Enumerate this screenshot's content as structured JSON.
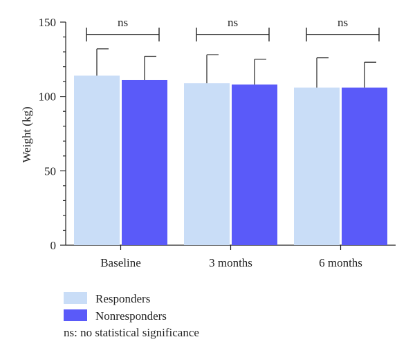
{
  "chart_data": {
    "type": "bar",
    "title": "",
    "xlabel": "",
    "ylabel": "Weight (kg)",
    "ylim": [
      0,
      150
    ],
    "yticks": [
      0,
      50,
      100,
      150
    ],
    "categories": [
      "Baseline",
      "3 months",
      "6 months"
    ],
    "series": [
      {
        "name": "Responders",
        "color": "#c9ddf7",
        "values": [
          114,
          109,
          106
        ],
        "errors": [
          18,
          19,
          20
        ]
      },
      {
        "name": "Nonresponders",
        "color": "#5a5af9",
        "values": [
          111,
          108,
          106
        ],
        "errors": [
          16,
          17,
          17
        ]
      }
    ],
    "significance": [
      "ns",
      "ns",
      "ns"
    ],
    "legend_placement": "bottom-left",
    "note": "ns: no statistical significance"
  }
}
